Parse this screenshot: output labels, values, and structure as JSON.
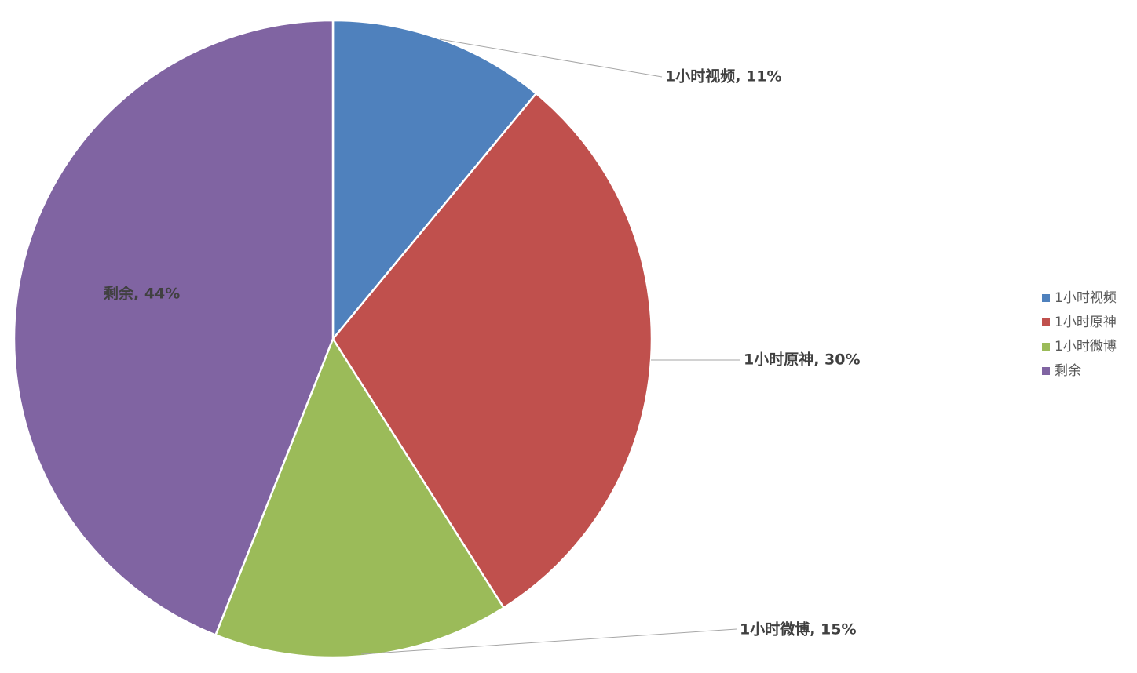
{
  "chart_data": {
    "type": "pie",
    "categories": [
      "1小时视频",
      "1小时原神",
      "1小时微博",
      "剩余"
    ],
    "values": [
      11,
      30,
      15,
      44
    ],
    "value_labels": [
      "1小时视频, 11%",
      "1小时原神, 30%",
      "1小时微博, 15%",
      "剩余, 44%"
    ],
    "colors": [
      "#4f81bd",
      "#c0504d",
      "#9bbb59",
      "#8064a2"
    ],
    "legend": "right"
  }
}
